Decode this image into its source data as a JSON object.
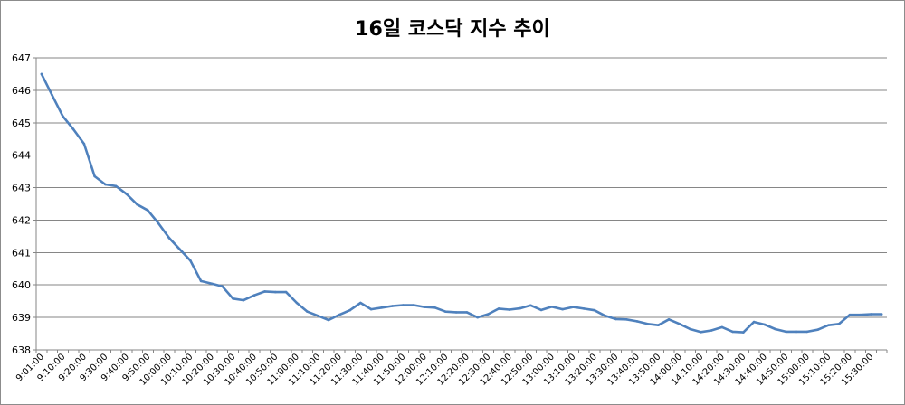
{
  "chart_data": {
    "type": "line",
    "title": "16일 코스닥 지수 추이",
    "xlabel": "",
    "ylabel": "",
    "ylim": [
      638,
      647
    ],
    "yticks": [
      "638",
      "639",
      "640",
      "641",
      "642",
      "643",
      "644",
      "645",
      "646",
      "647"
    ],
    "grid": true,
    "legend": "none",
    "line_color": "#4f81bd",
    "grid_color": "#868686",
    "x": [
      "9:01:00",
      "9:05:00",
      "9:10:00",
      "9:15:00",
      "9:20:00",
      "9:25:00",
      "9:30:00",
      "9:35:00",
      "9:40:00",
      "9:45:00",
      "9:50:00",
      "9:55:00",
      "10:00:00",
      "10:05:00",
      "10:10:00",
      "10:15:00",
      "10:20:00",
      "10:25:00",
      "10:30:00",
      "10:35:00",
      "10:40:00",
      "10:45:00",
      "10:50:00",
      "10:55:00",
      "11:00:00",
      "11:05:00",
      "11:10:00",
      "11:15:00",
      "11:20:00",
      "11:25:00",
      "11:30:00",
      "11:35:00",
      "11:40:00",
      "11:45:00",
      "11:50:00",
      "11:55:00",
      "12:00:00",
      "12:05:00",
      "12:10:00",
      "12:15:00",
      "12:20:00",
      "12:25:00",
      "12:30:00",
      "12:35:00",
      "12:40:00",
      "12:45:00",
      "12:50:00",
      "12:55:00",
      "13:00:00",
      "13:05:00",
      "13:10:00",
      "13:15:00",
      "13:20:00",
      "13:25:00",
      "13:30:00",
      "13:35:00",
      "13:40:00",
      "13:45:00",
      "13:50:00",
      "13:55:00",
      "14:00:00",
      "14:05:00",
      "14:10:00",
      "14:15:00",
      "14:20:00",
      "14:25:00",
      "14:30:00",
      "14:35:00",
      "14:40:00",
      "14:45:00",
      "14:50:00",
      "14:55:00",
      "15:00:00",
      "15:05:00",
      "15:10:00",
      "15:15:00",
      "15:20:00",
      "15:25:00",
      "15:30:00",
      "15:35:00"
    ],
    "xtick_labels": [
      "9:01:00",
      "9:10:00",
      "9:20:00",
      "9:30:00",
      "9:40:00",
      "9:50:00",
      "10:00:00",
      "10:10:00",
      "10:20:00",
      "10:30:00",
      "10:40:00",
      "10:50:00",
      "11:00:00",
      "11:10:00",
      "11:20:00",
      "11:30:00",
      "11:40:00",
      "11:50:00",
      "12:00:00",
      "12:10:00",
      "12:20:00",
      "12:30:00",
      "12:40:00",
      "12:50:00",
      "13:00:00",
      "13:10:00",
      "13:20:00",
      "13:30:00",
      "13:40:00",
      "13:50:00",
      "14:00:00",
      "14:10:00",
      "14:20:00",
      "14:30:00",
      "14:40:00",
      "14:50:00",
      "15:00:00",
      "15:10:00",
      "15:20:00",
      "15:30:00"
    ],
    "series": [
      {
        "name": "",
        "values": [
          646.5,
          645.85,
          645.2,
          644.8,
          644.35,
          643.35,
          643.1,
          643.05,
          642.8,
          642.48,
          642.3,
          641.9,
          641.45,
          641.1,
          640.75,
          640.12,
          640.04,
          639.96,
          639.58,
          639.53,
          639.68,
          639.8,
          639.78,
          639.78,
          639.45,
          639.18,
          639.05,
          638.92,
          639.08,
          639.22,
          639.45,
          639.25,
          639.3,
          639.35,
          639.38,
          639.38,
          639.32,
          639.3,
          639.18,
          639.16,
          639.16,
          639.0,
          639.1,
          639.27,
          639.24,
          639.28,
          639.37,
          639.23,
          639.33,
          639.25,
          639.32,
          639.27,
          639.22,
          639.05,
          638.95,
          638.94,
          638.88,
          638.8,
          638.76,
          638.94,
          638.8,
          638.64,
          638.55,
          638.6,
          638.7,
          638.56,
          638.54,
          638.86,
          638.78,
          638.64,
          638.56,
          638.56,
          638.56,
          638.62,
          638.76,
          638.8,
          639.08,
          639.08,
          639.1,
          639.1
        ]
      }
    ]
  }
}
